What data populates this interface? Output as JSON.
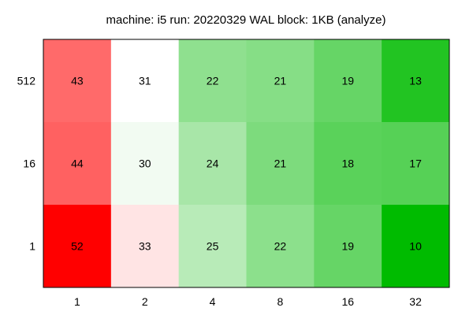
{
  "chart_data": {
    "type": "heatmap",
    "title": "machine: i5 run: 20220329 WAL block: 1KB (analyze)",
    "x_categories": [
      "1",
      "2",
      "4",
      "8",
      "16",
      "32"
    ],
    "y_categories": [
      "512",
      "16",
      "1"
    ],
    "values": [
      [
        43,
        31,
        22,
        21,
        19,
        13
      ],
      [
        44,
        30,
        24,
        21,
        18,
        17
      ],
      [
        52,
        33,
        25,
        22,
        19,
        10
      ]
    ],
    "cell_colors": [
      [
        "#ff6a6a",
        "#ffffff",
        "#8fe08f",
        "#86de86",
        "#66d566",
        "#22c422"
      ],
      [
        "#ff6161",
        "#f2fbf2",
        "#a8e6a8",
        "#7ddb7d",
        "#5ad25a",
        "#56d156"
      ],
      [
        "#ff0000",
        "#ffe4e4",
        "#b8ebb8",
        "#8ce08c",
        "#66d566",
        "#00bb00"
      ]
    ],
    "xlabel": "",
    "ylabel": "",
    "grid": false,
    "legend": "none"
  }
}
